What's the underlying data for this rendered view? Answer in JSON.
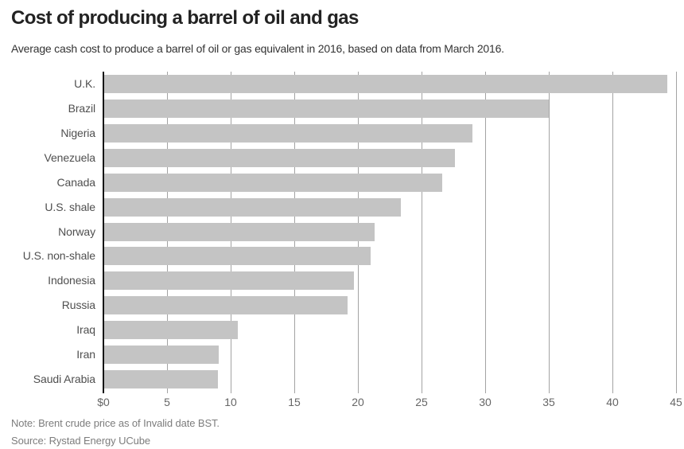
{
  "header": {
    "title": "Cost of producing a barrel of oil and gas",
    "subtitle": "Average cash cost to produce a barrel of oil or gas equivalent in 2016, based on data from March 2016."
  },
  "chart_data": {
    "type": "bar",
    "orientation": "horizontal",
    "title": "Cost of producing a barrel of oil and gas",
    "xlabel": "",
    "ylabel": "",
    "categories": [
      "U.K.",
      "Brazil",
      "Nigeria",
      "Venezuela",
      "Canada",
      "U.S. shale",
      "Norway",
      "U.S. non-shale",
      "Indonesia",
      "Russia",
      "Iraq",
      "Iran",
      "Saudi Arabia"
    ],
    "values": [
      44.33,
      34.99,
      28.99,
      27.62,
      26.64,
      23.35,
      21.31,
      20.99,
      19.71,
      19.21,
      10.57,
      9.08,
      8.98
    ],
    "xlim": [
      0,
      45
    ],
    "x_ticks": [
      0,
      5,
      10,
      15,
      20,
      25,
      30,
      35,
      40,
      45
    ],
    "x_tick_labels": [
      "$0",
      "5",
      "10",
      "15",
      "20",
      "25",
      "30",
      "35",
      "40",
      "45"
    ],
    "grid": true,
    "legend": false,
    "bar_color": "#c4c4c4",
    "gridline_color": "#a3a3a3",
    "axis_color": "#151515"
  },
  "footer": {
    "note": "Note: Brent crude price as of Invalid date BST.",
    "source": "Source: Rystad Energy UCube"
  }
}
